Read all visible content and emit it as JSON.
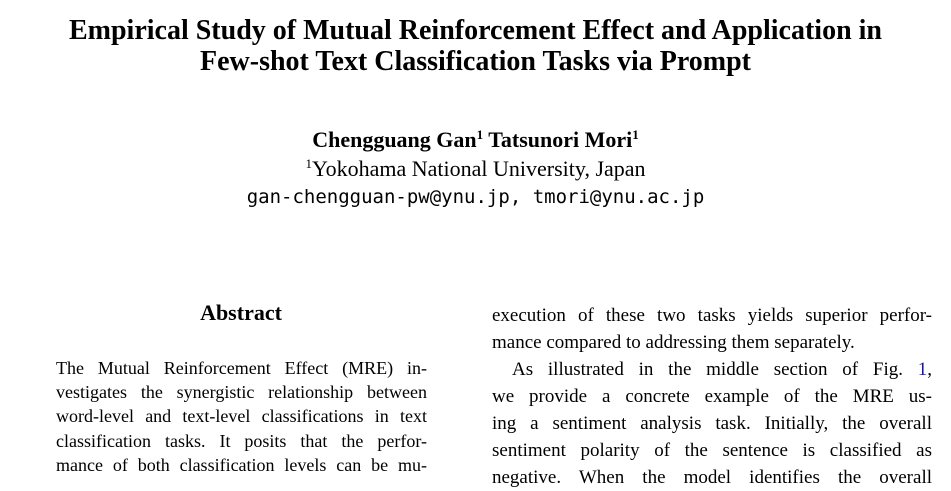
{
  "paper": {
    "title_line1": "Empirical Study of Mutual Reinforcement Effect and Application in",
    "title_line2": "Few-shot Text Classification Tasks via Prompt",
    "author1": "Chengguang Gan",
    "author1_mark": "1",
    "author2": "Tatsunori Mori",
    "author2_mark": "1",
    "affiliation_mark": "1",
    "affiliation": "Yokohama National University, Japan",
    "emails": "gan-chengguan-pw@ynu.jp, tmori@ynu.ac.jp"
  },
  "abstract": {
    "heading": "Abstract",
    "lines": [
      "The Mutual Reinforcement Effect (MRE) in-",
      "vestigates the synergistic relationship between",
      "word-level and text-level classifications in text",
      "classification tasks.  It posits that the perfor-",
      "mance of both classification levels can be mu-"
    ]
  },
  "right_column": {
    "line1": "execution of these two tasks yields superior perfor-",
    "line2": "mance compared to addressing them separately.",
    "line3_text": "As illustrated in the middle section of Fig. ",
    "line3_ref": "1",
    "line3_end": ",",
    "line4": "we provide a concrete example of the MRE us-",
    "line5": "ing a sentiment analysis task. Initially, the overall",
    "line6": "sentiment polarity of the sentence is classified as",
    "line7": "negative.  When the model identifies the overall"
  }
}
